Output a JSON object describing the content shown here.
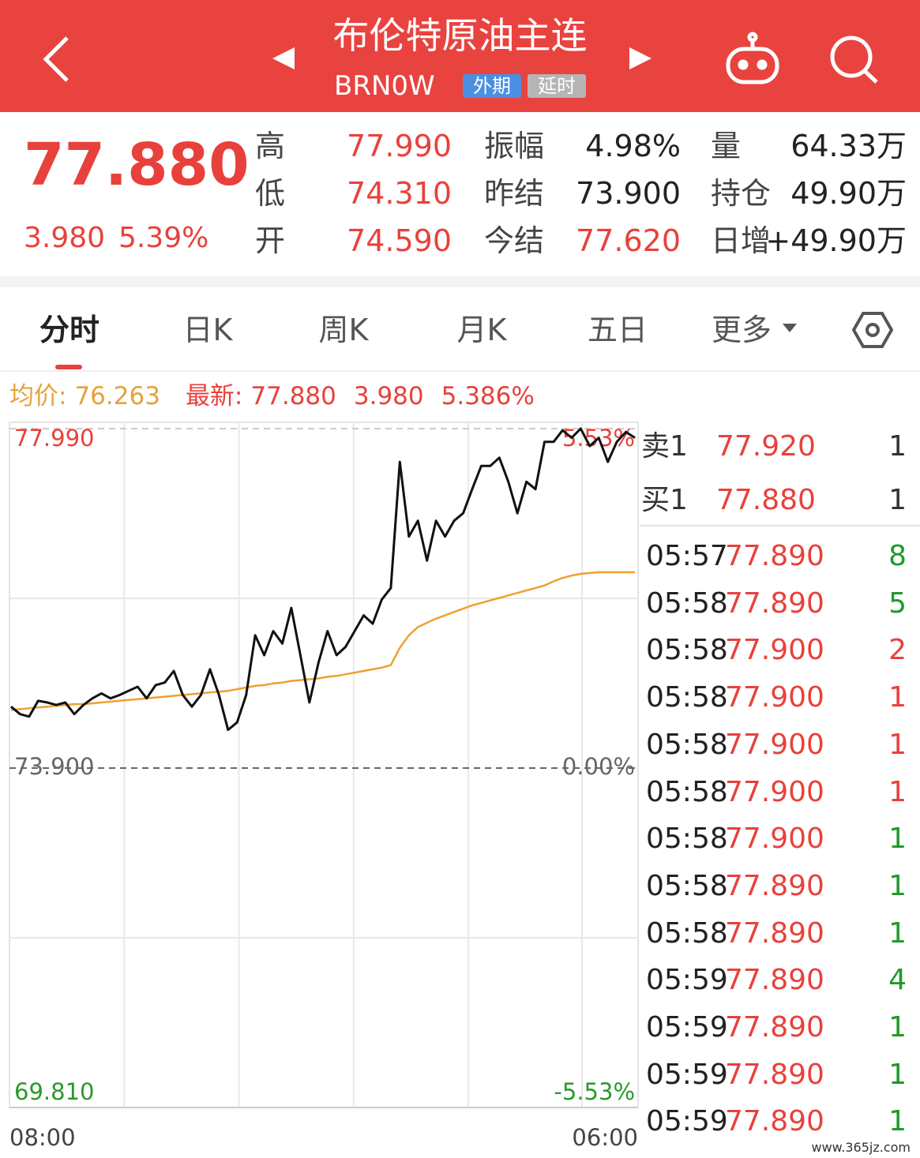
{
  "header": {
    "title": "布伦特原油主连",
    "code": "BRN0W",
    "tags": [
      {
        "text": "外期",
        "color": "#4a90e2"
      },
      {
        "text": "延时",
        "color": "#b5b5b5"
      }
    ]
  },
  "quote": {
    "price": "77.880",
    "change": "3.980",
    "change_pct": "5.39%",
    "stats": [
      {
        "label": "高",
        "value": "77.990",
        "color": "#e8413c"
      },
      {
        "label": "振幅",
        "value": "4.98%",
        "color": "#222"
      },
      {
        "label": "量",
        "value": "64.33万",
        "color": "#222"
      },
      {
        "label": "低",
        "value": "74.310",
        "color": "#e8413c"
      },
      {
        "label": "昨结",
        "value": "73.900",
        "color": "#222"
      },
      {
        "label": "持仓",
        "value": "49.90万",
        "color": "#222"
      },
      {
        "label": "开",
        "value": "74.590",
        "color": "#e8413c"
      },
      {
        "label": "今结",
        "value": "77.620",
        "color": "#e8413c"
      },
      {
        "label": "日增",
        "value": "+49.90万",
        "color": "#222"
      }
    ]
  },
  "tabs": [
    "分时",
    "日K",
    "周K",
    "月K",
    "五日",
    "更多"
  ],
  "summary": {
    "avg_label": "均价:",
    "avg": "76.263",
    "last_label": "最新:",
    "last": "77.880",
    "change": "3.980",
    "change_pct": "5.386%"
  },
  "chart_data": {
    "type": "line",
    "ylim": [
      69.81,
      77.99
    ],
    "yticks": [
      {
        "value": 77.99,
        "label": "77.990"
      },
      {
        "value": 73.9,
        "label": "73.900"
      },
      {
        "value": 69.81,
        "label": "69.810"
      }
    ],
    "y2lim": [
      -5.53,
      5.53
    ],
    "y2ticks": [
      {
        "value": 5.53,
        "label": "5.53%"
      },
      {
        "value": 0,
        "label": "0.00%"
      },
      {
        "value": -5.53,
        "label": "-5.53%"
      }
    ],
    "tick_colors": [
      "#e8413c",
      "#666",
      "#2a9a2a"
    ],
    "x_labels": [
      "08:00",
      "06:00"
    ],
    "series": [
      {
        "color": "#111111",
        "values": [
          74.64,
          74.55,
          74.52,
          74.71,
          74.69,
          74.66,
          74.69,
          74.55,
          74.66,
          74.74,
          74.8,
          74.74,
          74.78,
          74.83,
          74.88,
          74.74,
          74.9,
          74.93,
          75.07,
          74.78,
          74.64,
          74.78,
          75.09,
          74.78,
          74.36,
          74.45,
          74.78,
          75.5,
          75.26,
          75.55,
          75.4,
          75.83,
          75.26,
          74.69,
          75.17,
          75.55,
          75.26,
          75.36,
          75.55,
          75.74,
          75.64,
          75.93,
          76.07,
          77.59,
          76.69,
          76.88,
          76.4,
          76.88,
          76.69,
          76.88,
          76.97,
          77.26,
          77.54,
          77.54,
          77.64,
          77.35,
          76.97,
          77.35,
          77.26,
          77.83,
          77.83,
          77.97,
          77.88,
          77.99,
          77.78,
          77.88,
          77.59,
          77.83,
          77.95,
          77.88
        ]
      },
      {
        "color": "#f0a030",
        "values": [
          74.6,
          74.61,
          74.62,
          74.63,
          74.64,
          74.65,
          74.66,
          74.67,
          74.67,
          74.68,
          74.69,
          74.7,
          74.71,
          74.72,
          74.73,
          74.74,
          74.75,
          74.76,
          74.77,
          74.78,
          74.79,
          74.8,
          74.81,
          74.82,
          74.83,
          74.85,
          74.87,
          74.89,
          74.9,
          74.92,
          74.93,
          74.95,
          74.96,
          74.97,
          74.98,
          75.0,
          75.01,
          75.03,
          75.05,
          75.07,
          75.09,
          75.11,
          75.14,
          75.35,
          75.5,
          75.6,
          75.65,
          75.7,
          75.74,
          75.78,
          75.82,
          75.86,
          75.89,
          75.92,
          75.95,
          75.98,
          76.01,
          76.04,
          76.07,
          76.1,
          76.15,
          76.19,
          76.22,
          76.24,
          76.25,
          76.26,
          76.26,
          76.26,
          76.26,
          76.26
        ]
      }
    ]
  },
  "order_book": [
    {
      "label": "卖1",
      "price": "77.920",
      "qty": "1"
    },
    {
      "label": "买1",
      "price": "77.880",
      "qty": "1"
    }
  ],
  "trades": [
    {
      "time": "05:57",
      "price": "77.890",
      "qty": "8",
      "color": "#1f9a2b"
    },
    {
      "time": "05:58",
      "price": "77.890",
      "qty": "5",
      "color": "#1f9a2b"
    },
    {
      "time": "05:58",
      "price": "77.900",
      "qty": "2",
      "color": "#e8413c"
    },
    {
      "time": "05:58",
      "price": "77.900",
      "qty": "1",
      "color": "#e8413c"
    },
    {
      "time": "05:58",
      "price": "77.900",
      "qty": "1",
      "color": "#e8413c"
    },
    {
      "time": "05:58",
      "price": "77.900",
      "qty": "1",
      "color": "#e8413c"
    },
    {
      "time": "05:58",
      "price": "77.900",
      "qty": "1",
      "color": "#1f9a2b"
    },
    {
      "time": "05:58",
      "price": "77.890",
      "qty": "1",
      "color": "#1f9a2b"
    },
    {
      "time": "05:58",
      "price": "77.890",
      "qty": "1",
      "color": "#1f9a2b"
    },
    {
      "time": "05:59",
      "price": "77.890",
      "qty": "4",
      "color": "#1f9a2b"
    },
    {
      "time": "05:59",
      "price": "77.890",
      "qty": "1",
      "color": "#1f9a2b"
    },
    {
      "time": "05:59",
      "price": "77.890",
      "qty": "1",
      "color": "#1f9a2b"
    },
    {
      "time": "05:59",
      "price": "77.890",
      "qty": "1",
      "color": "#1f9a2b"
    }
  ],
  "watermark": "www.365jz.com"
}
